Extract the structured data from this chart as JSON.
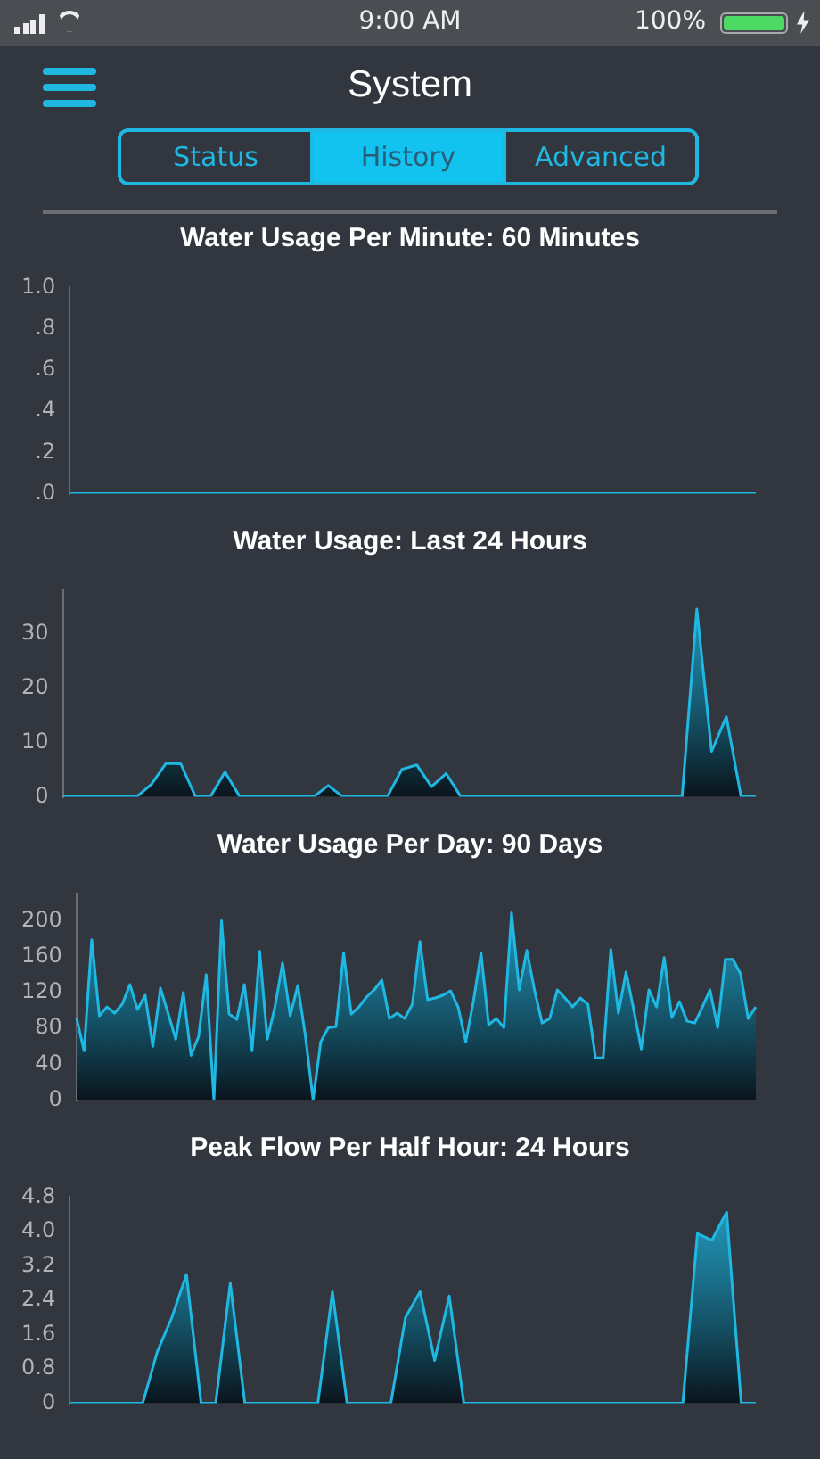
{
  "chart_data": [
    {
      "type": "other",
      "title": "System",
      "annotations": [
        "9:00 AM",
        "100%",
        "Status",
        "History",
        "Advanced"
      ]
    },
    {
      "type": "line",
      "title": "Water Usage Per Minute: 60 Minutes",
      "color": "#1fb8e3",
      "tick_labels": "y",
      "grid": false,
      "marker": "none",
      "categories": [
        null,
        null,
        null,
        null,
        null,
        null,
        null,
        null,
        null,
        null,
        null,
        null,
        null,
        null,
        null,
        null,
        null,
        null,
        null,
        null,
        null,
        null,
        null,
        null,
        null,
        null,
        null,
        null,
        null,
        null,
        null,
        null,
        null,
        null,
        null,
        null,
        null,
        null,
        null,
        null,
        null,
        null,
        null,
        null,
        null,
        null,
        null,
        null,
        null,
        null,
        null,
        null,
        null,
        null,
        null,
        null,
        null,
        null,
        null,
        null
      ],
      "values": [
        0,
        0,
        0,
        0,
        0,
        0,
        0,
        0,
        0,
        0,
        0,
        0,
        0,
        0,
        0,
        0,
        0,
        0,
        0,
        0,
        0,
        0,
        0,
        0,
        0,
        0,
        0,
        0,
        0,
        0,
        0,
        0,
        0,
        0,
        0,
        0,
        0,
        0,
        0,
        0,
        0,
        0,
        0,
        0,
        0,
        0,
        0,
        0,
        0,
        0,
        0,
        0,
        0,
        0,
        0,
        0,
        0,
        0,
        0,
        0
      ],
      "ylim": [
        0,
        1
      ],
      "yticks": [
        {
          "value": 0,
          "label": ".0"
        },
        {
          "value": 0.2,
          "label": ".2"
        },
        {
          "value": 0.4,
          "label": ".4"
        },
        {
          "value": 0.6,
          "label": ".6"
        },
        {
          "value": 0.8,
          "label": ".8"
        },
        {
          "value": 1,
          "label": "1.0"
        }
      ]
    },
    {
      "type": "area",
      "title": "Water Usage: Last 24 Hours",
      "color": "#1fb8e3",
      "tick_labels": "y",
      "grid": false,
      "marker": "none",
      "categories": [
        null,
        null,
        null,
        null,
        null,
        null,
        null,
        null,
        null,
        null,
        null,
        null,
        null,
        null,
        null,
        null,
        null,
        null,
        null,
        null,
        null,
        null,
        null,
        null,
        null,
        null,
        null,
        null,
        null,
        null,
        null,
        null,
        null,
        null,
        null,
        null,
        null,
        null,
        null,
        null,
        null,
        null,
        null,
        null,
        null,
        null,
        null,
        null
      ],
      "values": [
        0,
        0,
        0,
        0,
        0,
        0,
        2.3,
        6.2,
        6.1,
        0,
        0,
        4.6,
        0,
        0,
        0,
        0,
        0,
        0,
        2.1,
        0,
        0,
        0,
        0,
        5.1,
        5.9,
        1.9,
        4.3,
        0,
        0,
        0,
        0,
        0,
        0,
        0,
        0,
        0,
        0,
        0,
        0,
        0,
        0,
        0,
        0,
        34.6,
        8.4,
        14.8,
        0,
        0
      ],
      "ylim": [
        0,
        38
      ],
      "yticks": [
        0,
        10,
        20,
        30
      ]
    },
    {
      "type": "area",
      "title": "Water Usage Per Day: 90 Days",
      "color": "#1fb8e3",
      "tick_labels": "y",
      "grid": false,
      "marker": "none",
      "categories": [
        null,
        null,
        null,
        null,
        null,
        null,
        null,
        null,
        null,
        null,
        null,
        null,
        null,
        null,
        null,
        null,
        null,
        null,
        null,
        null,
        null,
        null,
        null,
        null,
        null,
        null,
        null,
        null,
        null,
        null,
        null,
        null,
        null,
        null,
        null,
        null,
        null,
        null,
        null,
        null,
        null,
        null,
        null,
        null,
        null,
        null,
        null,
        null,
        null,
        null,
        null,
        null,
        null,
        null,
        null,
        null,
        null,
        null,
        null,
        null,
        null,
        null,
        null,
        null,
        null,
        null,
        null,
        null,
        null,
        null,
        null,
        null,
        null,
        null,
        null,
        null,
        null,
        null,
        null,
        null,
        null,
        null,
        null,
        null,
        null,
        null,
        null,
        null,
        null,
        null
      ],
      "values": [
        92,
        55,
        179,
        94,
        104,
        97,
        107,
        129,
        101,
        117,
        60,
        125,
        97,
        68,
        120,
        50,
        71,
        140,
        0,
        200,
        96,
        90,
        129,
        55,
        166,
        68,
        104,
        153,
        94,
        128,
        71,
        0,
        65,
        81,
        82,
        164,
        96,
        104,
        115,
        123,
        134,
        91,
        97,
        91,
        107,
        177,
        112,
        114,
        117,
        122,
        104,
        65,
        110,
        164,
        84,
        91,
        81,
        209,
        123,
        167,
        123,
        86,
        91,
        123,
        114,
        104,
        114,
        107,
        47,
        47,
        168,
        97,
        143,
        101,
        57,
        123,
        104,
        159,
        92,
        110,
        88,
        86,
        104,
        123,
        81,
        157,
        157,
        141,
        91,
        104
      ],
      "ylim": [
        0,
        230
      ],
      "yticks": [
        0,
        40,
        80,
        120,
        160,
        200
      ]
    },
    {
      "type": "area",
      "title": "Peak Flow Per Half Hour: 24 Hours",
      "color": "#1fb8e3",
      "tick_labels": "y",
      "grid": false,
      "marker": "none",
      "categories": [
        null,
        null,
        null,
        null,
        null,
        null,
        null,
        null,
        null,
        null,
        null,
        null,
        null,
        null,
        null,
        null,
        null,
        null,
        null,
        null,
        null,
        null,
        null,
        null,
        null,
        null,
        null,
        null,
        null,
        null,
        null,
        null,
        null,
        null,
        null,
        null,
        null,
        null,
        null,
        null,
        null,
        null,
        null,
        null,
        null,
        null,
        null,
        null
      ],
      "values": [
        0,
        0,
        0,
        0,
        0,
        0,
        1.2,
        2,
        3,
        0,
        0,
        2.8,
        0,
        0,
        0,
        0,
        0,
        0,
        2.6,
        0,
        0,
        0,
        0,
        2,
        2.6,
        1,
        2.5,
        0,
        0,
        0,
        0,
        0,
        0,
        0,
        0,
        0,
        0,
        0,
        0,
        0,
        0,
        0,
        0,
        3.95,
        3.8,
        4.45,
        0,
        0
      ],
      "ylim": [
        0,
        4.8
      ],
      "yticks": [
        0,
        0.8,
        1.6,
        2.4,
        3.2,
        {
          "value": 4,
          "label": "4.0"
        },
        4.8
      ]
    }
  ]
}
